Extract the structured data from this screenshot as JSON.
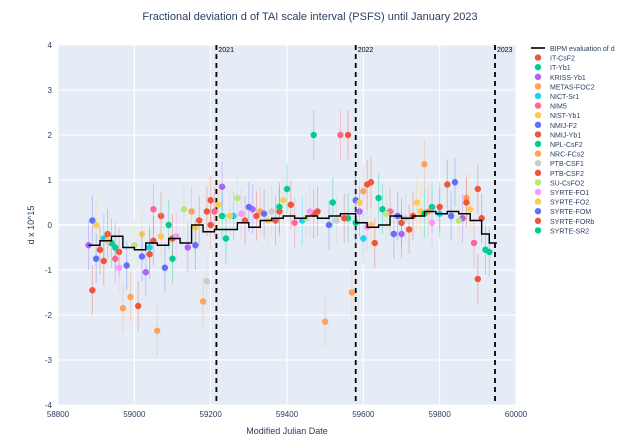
{
  "chart_data": {
    "type": "scatter",
    "title": "Fractional deviation d of TAI scale interval (PSFS) until January 2023",
    "xlabel": "Modified Julian Date",
    "ylabel": "d x 10^15",
    "xlim": [
      58800,
      60000
    ],
    "ylim": [
      -4,
      4
    ],
    "x_ticks": [
      58800,
      59000,
      59200,
      59400,
      59600,
      59800,
      60000
    ],
    "y_ticks": [
      -4,
      -3,
      -2,
      -1,
      0,
      1,
      2,
      3,
      4
    ],
    "grid": true,
    "legend_position": "right",
    "year_markers": [
      {
        "x": 59215,
        "label": "2021"
      },
      {
        "x": 59580,
        "label": "2022"
      },
      {
        "x": 59945,
        "label": "2023"
      }
    ],
    "bipm_series": {
      "name": "BIPM evaluation of d",
      "color": "#000000",
      "steps": [
        [
          58880,
          -0.45
        ],
        [
          58910,
          -0.35
        ],
        [
          58940,
          -0.25
        ],
        [
          58970,
          -0.5
        ],
        [
          59000,
          -0.55
        ],
        [
          59030,
          -0.4
        ],
        [
          59060,
          -0.45
        ],
        [
          59090,
          -0.3
        ],
        [
          59120,
          -0.4
        ],
        [
          59150,
          0.0
        ],
        [
          59180,
          -0.15
        ],
        [
          59210,
          -0.1
        ],
        [
          59240,
          -0.1
        ],
        [
          59270,
          0.05
        ],
        [
          59300,
          -0.05
        ],
        [
          59330,
          0.1
        ],
        [
          59360,
          0.15
        ],
        [
          59390,
          0.2
        ],
        [
          59420,
          0.15
        ],
        [
          59450,
          0.2
        ],
        [
          59480,
          0.15
        ],
        [
          59510,
          0.2
        ],
        [
          59540,
          0.25
        ],
        [
          59580,
          0.05
        ],
        [
          59610,
          -0.05
        ],
        [
          59640,
          0.0
        ],
        [
          59670,
          0.2
        ],
        [
          59700,
          0.15
        ],
        [
          59730,
          0.2
        ],
        [
          59760,
          0.3
        ],
        [
          59790,
          0.25
        ],
        [
          59820,
          0.3
        ],
        [
          59850,
          0.25
        ],
        [
          59880,
          0.1
        ],
        [
          59910,
          -0.2
        ],
        [
          59930,
          -0.4
        ]
      ]
    },
    "series": [
      {
        "name": "IT-CsF2",
        "color": "#EF553B",
        "points": [
          [
            58890,
            -1.45
          ],
          [
            58960,
            -0.6
          ],
          [
            59010,
            -1.8
          ],
          [
            59100,
            -0.3
          ],
          [
            59200,
            0.55
          ],
          [
            59290,
            0.1
          ],
          [
            59380,
            0.3
          ],
          [
            59470,
            0.25
          ],
          [
            59560,
            2.0
          ],
          [
            59610,
            0.9
          ],
          [
            59700,
            0.05
          ],
          [
            59820,
            0.9
          ],
          [
            59900,
            0.8
          ]
        ]
      },
      {
        "name": "IT-Yb1",
        "color": "#00CC96",
        "points": [
          [
            59470,
            2.0
          ],
          [
            59520,
            0.5
          ],
          [
            59640,
            0.6
          ],
          [
            59780,
            0.4
          ]
        ]
      },
      {
        "name": "KRISS-Yb1",
        "color": "#AB63FA",
        "points": [
          [
            58880,
            -0.45
          ],
          [
            59030,
            -1.05
          ],
          [
            59140,
            -0.5
          ],
          [
            59230,
            0.85
          ],
          [
            59310,
            0.35
          ],
          [
            59590,
            0.3
          ],
          [
            59700,
            -0.2
          ],
          [
            59860,
            0.15
          ]
        ]
      },
      {
        "name": "METAS-FOC2",
        "color": "#FFA15A",
        "points": [
          [
            58990,
            -1.6
          ],
          [
            59060,
            -2.35
          ],
          [
            59180,
            -1.7
          ],
          [
            59500,
            -2.15
          ],
          [
            59570,
            -1.5
          ],
          [
            59760,
            1.35
          ],
          [
            59870,
            0.6
          ]
        ]
      },
      {
        "name": "NICT-Sr1",
        "color": "#19D3F3",
        "points": [
          [
            58920,
            -0.3
          ],
          [
            59040,
            -0.5
          ],
          [
            59260,
            0.2
          ],
          [
            59440,
            0.1
          ],
          [
            59600,
            -0.3
          ],
          [
            59800,
            0.25
          ]
        ]
      },
      {
        "name": "NIM5",
        "color": "#FF6692",
        "points": [
          [
            58950,
            -0.75
          ],
          [
            59050,
            0.35
          ],
          [
            59210,
            0.3
          ],
          [
            59420,
            0.05
          ],
          [
            59540,
            2.0
          ],
          [
            59670,
            0.3
          ],
          [
            59890,
            -0.4
          ]
        ]
      },
      {
        "name": "NIST-Yb1",
        "color": "#FECB52",
        "points": [
          [
            58900,
            0.0
          ],
          [
            59020,
            -0.2
          ],
          [
            59160,
            -0.05
          ],
          [
            59250,
            0.2
          ],
          [
            59350,
            0.1
          ],
          [
            59620,
            0.0
          ],
          [
            59740,
            0.5
          ]
        ]
      },
      {
        "name": "NMIJ-F2",
        "color": "#636EFA",
        "points": [
          [
            58890,
            0.1
          ],
          [
            58980,
            -0.9
          ],
          [
            59080,
            -0.95
          ],
          [
            59300,
            0.4
          ],
          [
            59580,
            0.55
          ],
          [
            59690,
            0.2
          ],
          [
            59840,
            0.95
          ]
        ]
      },
      {
        "name": "NMIJ-Yb1",
        "color": "#EF553B",
        "points": [
          [
            58930,
            -0.2
          ],
          [
            59070,
            0.2
          ],
          [
            59190,
            0.3
          ],
          [
            59410,
            0.45
          ],
          [
            59620,
            0.95
          ],
          [
            59720,
            -0.1
          ],
          [
            59900,
            -1.2
          ]
        ]
      },
      {
        "name": "NPL-CsF2",
        "color": "#00CC96",
        "points": [
          [
            58940,
            -0.4
          ],
          [
            59100,
            -0.75
          ],
          [
            59240,
            -0.3
          ],
          [
            59380,
            0.4
          ],
          [
            59560,
            0.15
          ],
          [
            59650,
            0.35
          ],
          [
            59920,
            -0.55
          ]
        ]
      },
      {
        "name": "NRC-FCs2",
        "color": "#FFA15A",
        "points": [
          [
            58970,
            -1.85
          ],
          [
            59150,
            0.3
          ],
          [
            59330,
            0.3
          ],
          [
            59600,
            0.75
          ],
          [
            59770,
            0.3
          ]
        ]
      },
      {
        "name": "PTB-CSF1",
        "color": "#CCCCCC",
        "points": [
          [
            59190,
            -1.25
          ],
          [
            59360,
            0.3
          ],
          [
            59530,
            0.1
          ],
          [
            59710,
            0.15
          ]
        ]
      },
      {
        "name": "PTB-CSF2",
        "color": "#EF553B",
        "points": [
          [
            58910,
            -0.55
          ],
          [
            59040,
            -0.65
          ],
          [
            59170,
            0.1
          ],
          [
            59320,
            0.2
          ],
          [
            59480,
            0.3
          ],
          [
            59630,
            -0.4
          ],
          [
            59800,
            0.4
          ],
          [
            59910,
            0.15
          ]
        ]
      },
      {
        "name": "SU-CsFO2",
        "color": "#B6E880",
        "points": [
          [
            59000,
            -0.45
          ],
          [
            59130,
            0.35
          ],
          [
            59270,
            0.6
          ],
          [
            59450,
            0.15
          ],
          [
            59660,
            0.25
          ],
          [
            59850,
            0.1
          ]
        ]
      },
      {
        "name": "SYRTE-FO1",
        "color": "#FF97FF",
        "points": [
          [
            58960,
            -0.95
          ],
          [
            59110,
            -0.25
          ],
          [
            59280,
            0.25
          ],
          [
            59460,
            0.3
          ],
          [
            59610,
            -0.05
          ],
          [
            59780,
            0.05
          ]
        ]
      },
      {
        "name": "SYRTE-FO2",
        "color": "#FECB52",
        "points": [
          [
            58930,
            -0.35
          ],
          [
            59070,
            -0.25
          ],
          [
            59220,
            0.45
          ],
          [
            59390,
            0.55
          ],
          [
            59590,
            0.5
          ],
          [
            59750,
            0.3
          ],
          [
            59880,
            0.35
          ]
        ]
      },
      {
        "name": "SYRTE-FOM",
        "color": "#636EFA",
        "points": [
          [
            58900,
            -0.75
          ],
          [
            59020,
            -0.7
          ],
          [
            59160,
            -0.45
          ],
          [
            59340,
            0.25
          ],
          [
            59510,
            0.0
          ],
          [
            59680,
            -0.2
          ],
          [
            59830,
            0.2
          ]
        ]
      },
      {
        "name": "SYRTE-FORb",
        "color": "#EF553B",
        "points": [
          [
            58920,
            -0.8
          ],
          [
            59050,
            -0.35
          ],
          [
            59200,
            0.0
          ],
          [
            59370,
            0.1
          ],
          [
            59550,
            0.15
          ],
          [
            59730,
            0.2
          ],
          [
            59870,
            0.5
          ]
        ]
      },
      {
        "name": "SYRTE-SR2",
        "color": "#00CC96",
        "points": [
          [
            58950,
            -0.5
          ],
          [
            59090,
            0.0
          ],
          [
            59230,
            0.2
          ],
          [
            59400,
            0.8
          ],
          [
            59580,
            0.05
          ],
          [
            59760,
            0.25
          ],
          [
            59930,
            -0.6
          ]
        ]
      }
    ]
  }
}
